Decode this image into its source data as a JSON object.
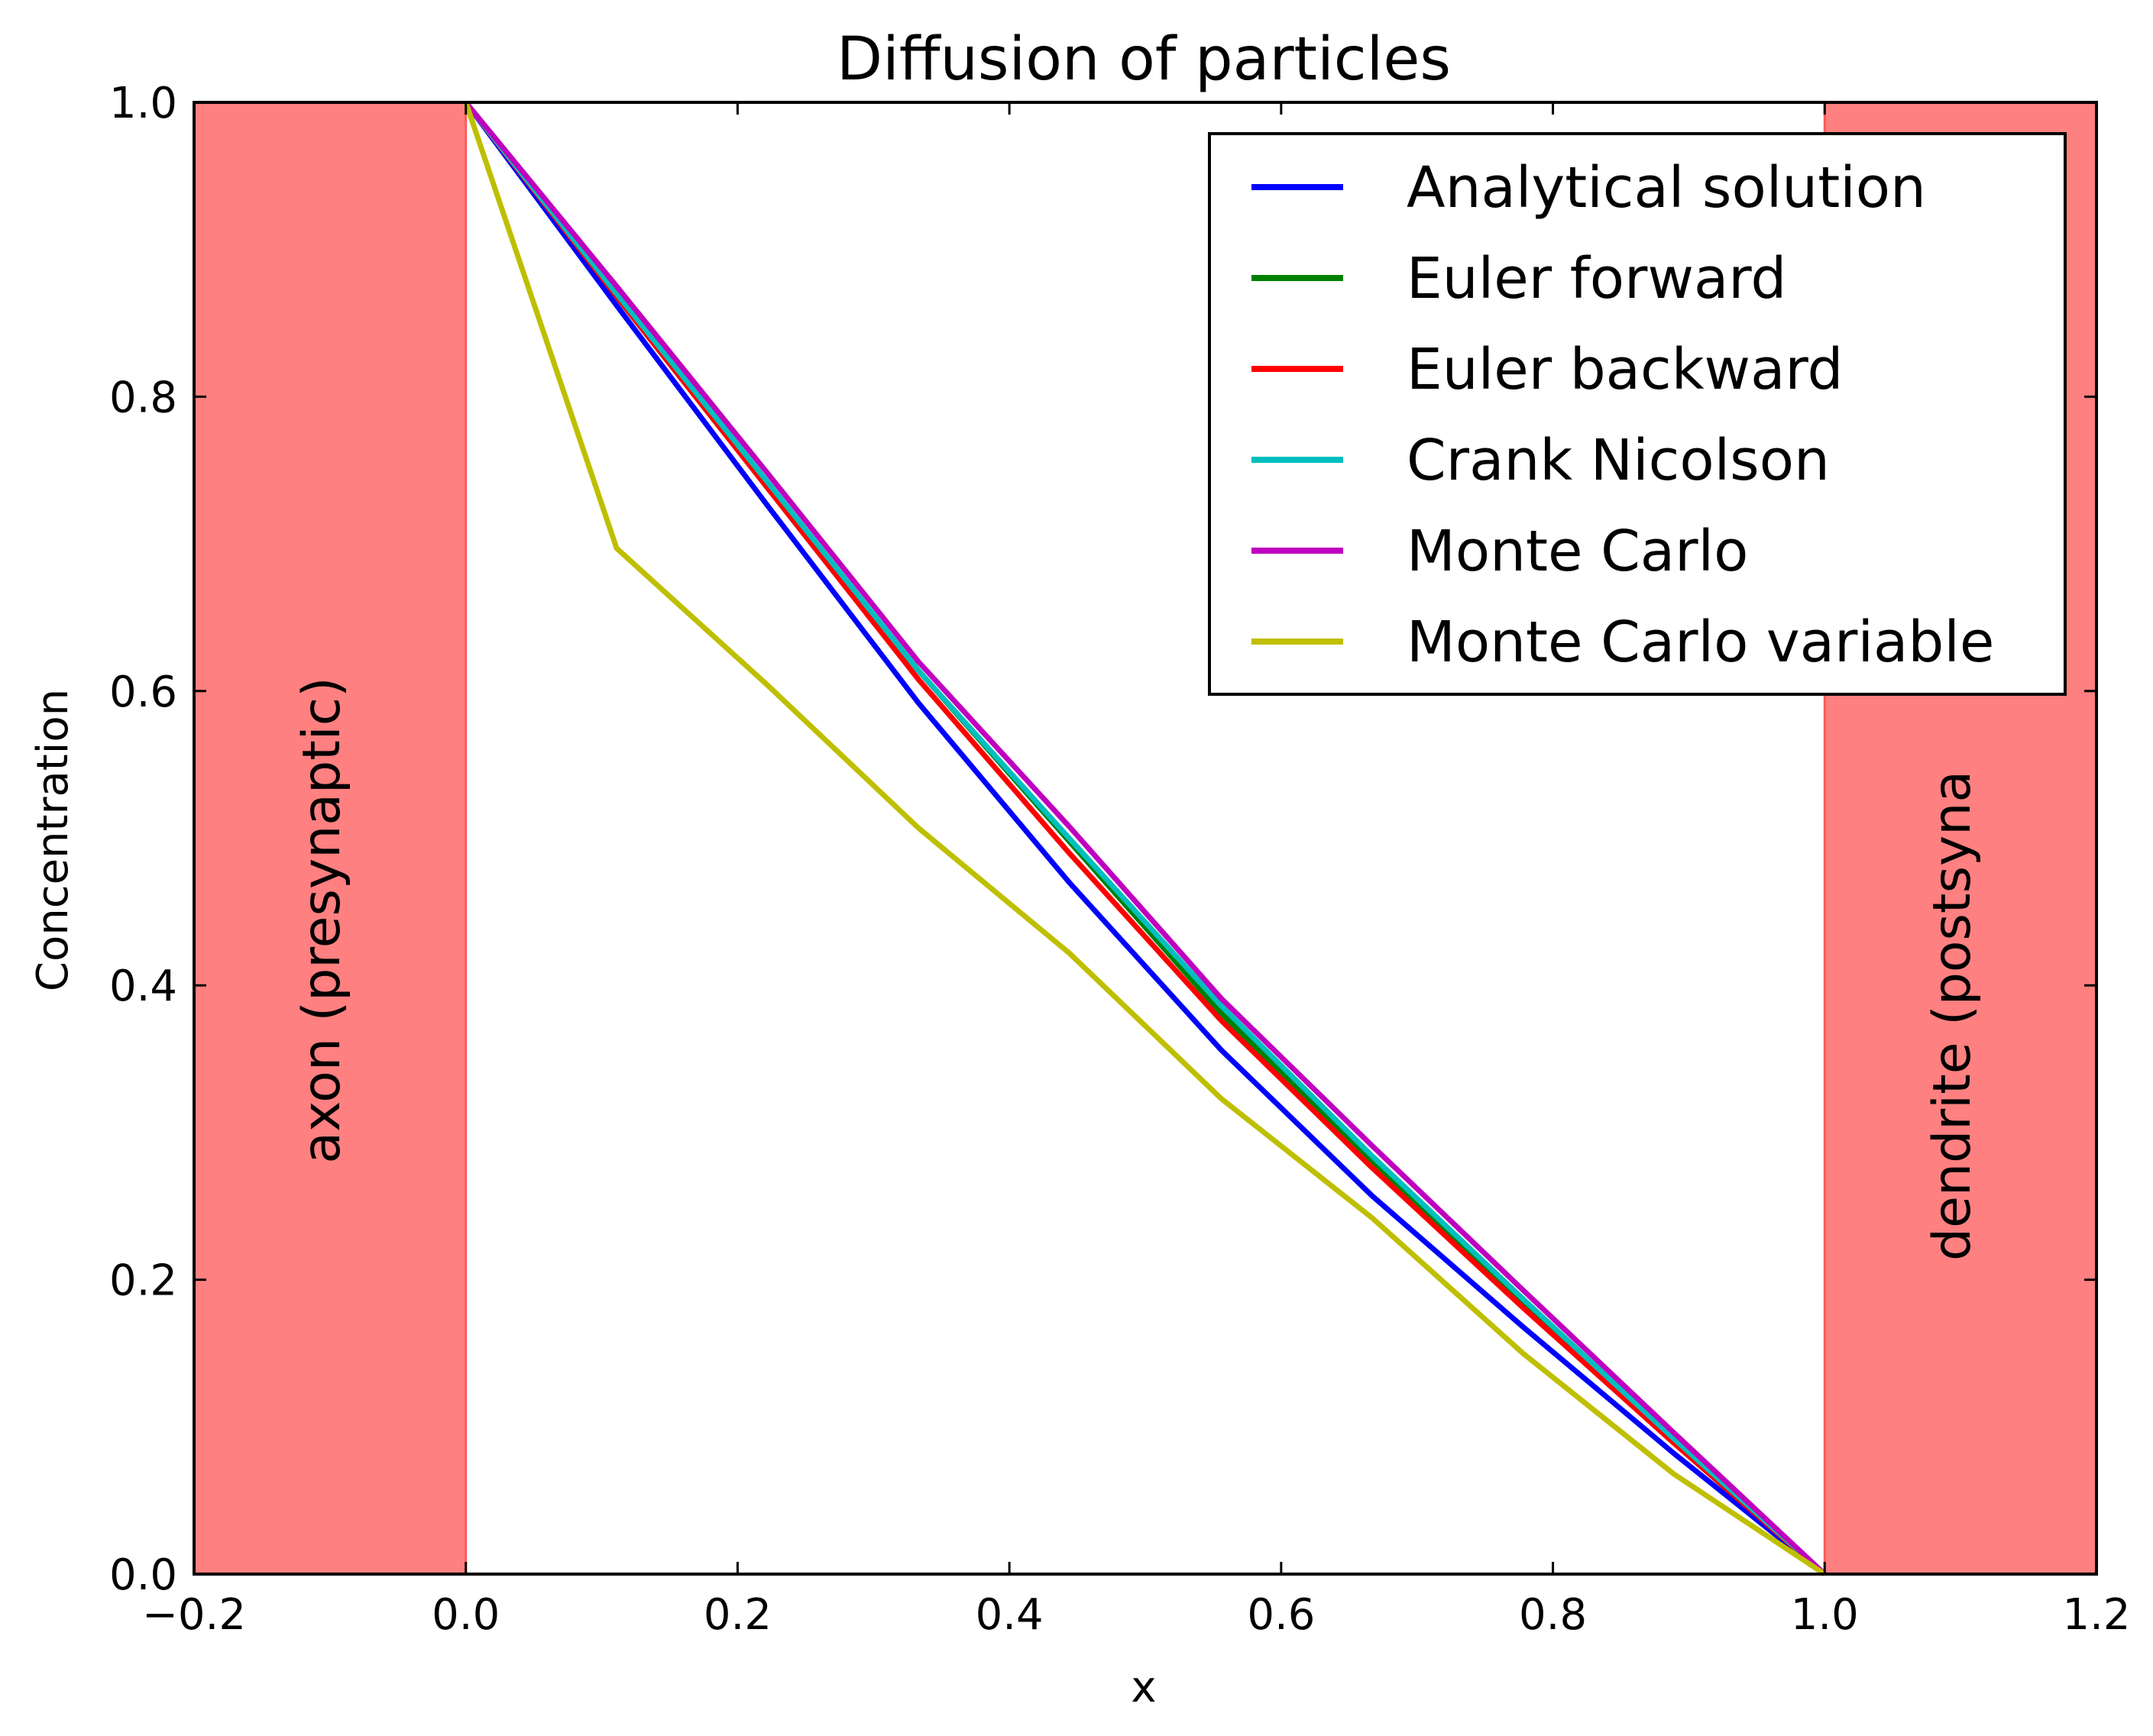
{
  "chart_data": {
    "type": "line",
    "title": "Diffusion of particles",
    "xlabel": "x",
    "ylabel": "Concentration",
    "xlim": [
      -0.2,
      1.2
    ],
    "ylim": [
      0.0,
      1.0
    ],
    "xticks": [
      "−0.2",
      "0.0",
      "0.2",
      "0.4",
      "0.6",
      "0.8",
      "1.0",
      "1.2"
    ],
    "xtick_values": [
      -0.2,
      0.0,
      0.2,
      0.4,
      0.6,
      0.8,
      1.0,
      1.2
    ],
    "yticks": [
      "0.0",
      "0.2",
      "0.4",
      "0.6",
      "0.8",
      "1.0"
    ],
    "ytick_values": [
      0.0,
      0.2,
      0.4,
      0.6,
      0.8,
      1.0
    ],
    "grid": false,
    "legend_position": "top-right",
    "regions": [
      {
        "label": "axon (presynaptic)",
        "x_range": [
          -0.2,
          0.0
        ],
        "color": "#ff8080"
      },
      {
        "label": "dendrite (postsyna",
        "x_range": [
          1.0,
          1.2
        ],
        "color": "#ff8080"
      }
    ],
    "series": [
      {
        "name": "Analytical solution",
        "color": "#0000ff",
        "x": [
          0.0,
          0.111,
          0.222,
          0.333,
          0.444,
          0.556,
          0.667,
          0.778,
          0.889,
          1.0
        ],
        "y": [
          1.0,
          0.862,
          0.726,
          0.592,
          0.47,
          0.356,
          0.257,
          0.168,
          0.082,
          0.0
        ]
      },
      {
        "name": "Euler forward",
        "color": "#008000",
        "x": [
          0.0,
          0.111,
          0.222,
          0.333,
          0.444,
          0.556,
          0.667,
          0.778,
          0.889,
          1.0
        ],
        "y": [
          1.0,
          0.87,
          0.741,
          0.614,
          0.498,
          0.381,
          0.28,
          0.185,
          0.091,
          0.0
        ]
      },
      {
        "name": "Euler backward",
        "color": "#ff0000",
        "x": [
          0.0,
          0.111,
          0.222,
          0.333,
          0.444,
          0.556,
          0.667,
          0.778,
          0.889,
          1.0
        ],
        "y": [
          1.0,
          0.868,
          0.738,
          0.608,
          0.49,
          0.376,
          0.276,
          0.181,
          0.089,
          0.0
        ]
      },
      {
        "name": "Crank Nicolson",
        "color": "#00bfbf",
        "x": [
          0.0,
          0.111,
          0.222,
          0.333,
          0.444,
          0.556,
          0.667,
          0.778,
          0.889,
          1.0
        ],
        "y": [
          1.0,
          0.87,
          0.742,
          0.614,
          0.5,
          0.386,
          0.284,
          0.187,
          0.092,
          0.0
        ]
      },
      {
        "name": "Monte Carlo",
        "color": "#bf00bf",
        "x": [
          0.0,
          0.111,
          0.222,
          0.333,
          0.444,
          0.556,
          0.667,
          0.778,
          0.889,
          1.0
        ],
        "y": [
          1.0,
          0.875,
          0.748,
          0.62,
          0.508,
          0.391,
          0.291,
          0.193,
          0.096,
          0.0
        ]
      },
      {
        "name": "Monte Carlo variable",
        "color": "#bfbf00",
        "x": [
          0.0,
          0.111,
          0.222,
          0.333,
          0.444,
          0.556,
          0.667,
          0.778,
          0.889,
          1.0
        ],
        "y": [
          1.0,
          0.697,
          0.604,
          0.507,
          0.422,
          0.323,
          0.242,
          0.15,
          0.068,
          0.0
        ]
      }
    ]
  }
}
